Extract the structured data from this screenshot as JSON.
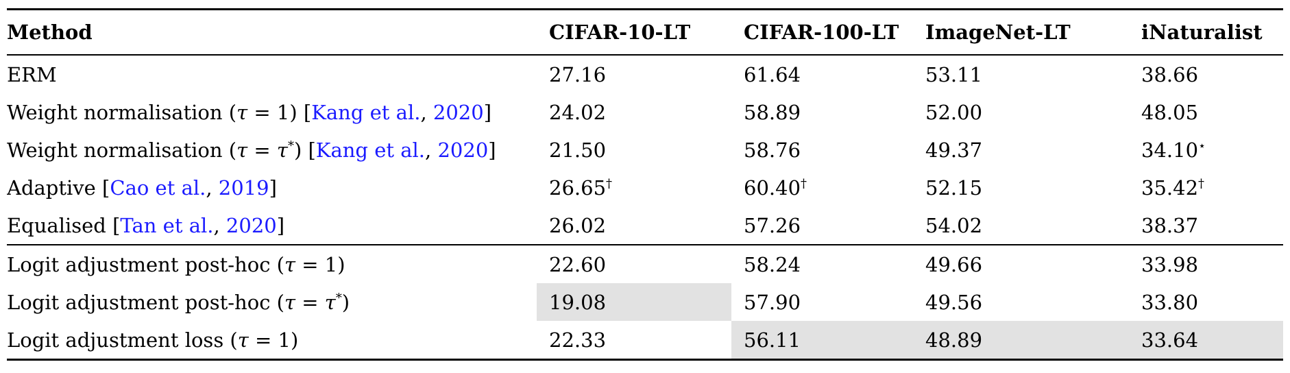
{
  "colors": {
    "citation_blue": "#1b1bff",
    "highlight_gray": "#e2e2e2",
    "text_black": "#000000"
  },
  "table": {
    "headers": [
      {
        "label": "Method"
      },
      {
        "label": "CIFAR-10-LT"
      },
      {
        "label": "CIFAR-100-LT"
      },
      {
        "label": "ImageNet-LT"
      },
      {
        "label": "iNaturalist"
      }
    ],
    "sections": [
      {
        "rows": [
          {
            "method": [
              {
                "text": "ERM"
              }
            ],
            "cells": [
              {
                "value": "27.16"
              },
              {
                "value": "61.64"
              },
              {
                "value": "53.11"
              },
              {
                "value": "38.66"
              }
            ]
          },
          {
            "method": [
              {
                "text": "Weight normalisation ("
              },
              {
                "text": "τ",
                "style": "math"
              },
              {
                "text": " = 1) ["
              },
              {
                "text": "Kang et al.",
                "style": "cite"
              },
              {
                "text": ", "
              },
              {
                "text": "2020",
                "style": "cite"
              },
              {
                "text": "]"
              }
            ],
            "cells": [
              {
                "value": "24.02"
              },
              {
                "value": "58.89"
              },
              {
                "value": "52.00"
              },
              {
                "value": "48.05"
              }
            ]
          },
          {
            "method": [
              {
                "text": "Weight normalisation ("
              },
              {
                "text": "τ",
                "style": "math"
              },
              {
                "text": " = "
              },
              {
                "text": "τ",
                "style": "math"
              },
              {
                "text": "*",
                "style": "sup"
              },
              {
                "text": ") ["
              },
              {
                "text": "Kang et al.",
                "style": "cite"
              },
              {
                "text": ", "
              },
              {
                "text": "2020",
                "style": "cite"
              },
              {
                "text": "]"
              }
            ],
            "cells": [
              {
                "value": "21.50"
              },
              {
                "value": "58.76"
              },
              {
                "value": "49.37"
              },
              {
                "value": "34.10",
                "sup": "⋆"
              }
            ]
          },
          {
            "method": [
              {
                "text": "Adaptive ["
              },
              {
                "text": "Cao et al.",
                "style": "cite"
              },
              {
                "text": ", "
              },
              {
                "text": "2019",
                "style": "cite"
              },
              {
                "text": "]"
              }
            ],
            "cells": [
              {
                "value": "26.65",
                "sup": "†"
              },
              {
                "value": "60.40",
                "sup": "†"
              },
              {
                "value": "52.15"
              },
              {
                "value": "35.42",
                "sup": "†"
              }
            ]
          },
          {
            "method": [
              {
                "text": "Equalised ["
              },
              {
                "text": "Tan et al.",
                "style": "cite"
              },
              {
                "text": ", "
              },
              {
                "text": "2020",
                "style": "cite"
              },
              {
                "text": "]"
              }
            ],
            "cells": [
              {
                "value": "26.02"
              },
              {
                "value": "57.26"
              },
              {
                "value": "54.02"
              },
              {
                "value": "38.37"
              }
            ]
          }
        ]
      },
      {
        "rows": [
          {
            "method": [
              {
                "text": "Logit adjustment post-hoc ("
              },
              {
                "text": "τ",
                "style": "math"
              },
              {
                "text": " = 1)"
              }
            ],
            "cells": [
              {
                "value": "22.60"
              },
              {
                "value": "58.24"
              },
              {
                "value": "49.66"
              },
              {
                "value": "33.98"
              }
            ]
          },
          {
            "method": [
              {
                "text": "Logit adjustment post-hoc ("
              },
              {
                "text": "τ",
                "style": "math"
              },
              {
                "text": " = "
              },
              {
                "text": "τ",
                "style": "math"
              },
              {
                "text": "*",
                "style": "sup"
              },
              {
                "text": ")"
              }
            ],
            "cells": [
              {
                "value": "19.08",
                "highlight": true
              },
              {
                "value": "57.90"
              },
              {
                "value": "49.56"
              },
              {
                "value": "33.80"
              }
            ]
          },
          {
            "method": [
              {
                "text": "Logit adjustment loss ("
              },
              {
                "text": "τ",
                "style": "math"
              },
              {
                "text": " = 1)"
              }
            ],
            "cells": [
              {
                "value": "22.33"
              },
              {
                "value": "56.11",
                "highlight": true
              },
              {
                "value": "48.89",
                "highlight": true
              },
              {
                "value": "33.64",
                "highlight": true
              }
            ]
          }
        ]
      }
    ]
  }
}
